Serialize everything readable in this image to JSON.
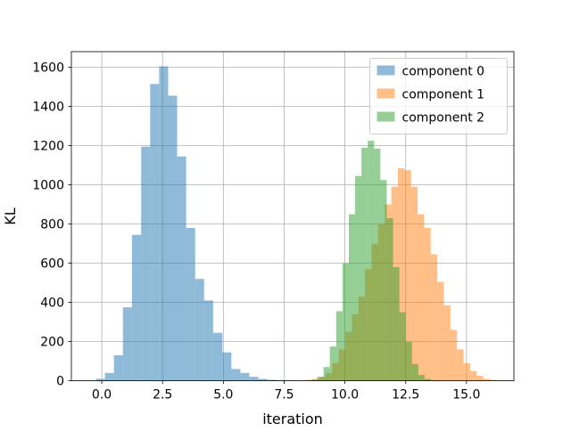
{
  "chart_data": {
    "type": "histogram",
    "title": "",
    "xlabel": "iteration",
    "ylabel": "KL",
    "xlim": [
      -1.25,
      16.95
    ],
    "ylim": [
      0,
      1680
    ],
    "xticks": [
      0.0,
      2.5,
      5.0,
      7.5,
      10.0,
      12.5,
      15.0
    ],
    "xtick_labels": [
      "0.0",
      "2.5",
      "5.0",
      "7.5",
      "10.0",
      "12.5",
      "15.0"
    ],
    "yticks": [
      0,
      200,
      400,
      600,
      800,
      1000,
      1200,
      1400,
      1600
    ],
    "ytick_labels": [
      "0",
      "200",
      "400",
      "600",
      "800",
      "1000",
      "1200",
      "1400",
      "1600"
    ],
    "grid": true,
    "legend_position": "top-right",
    "series": [
      {
        "name": "component 0",
        "color": "#1f77b4",
        "alpha": 0.5,
        "bin_edges": [
          -0.24,
          0.13,
          0.5,
          0.87,
          1.24,
          1.62,
          1.99,
          2.36,
          2.73,
          3.1,
          3.47,
          3.84,
          4.21,
          4.58,
          4.96,
          5.33,
          5.7,
          6.07,
          6.44,
          6.81,
          7.18,
          7.55,
          7.92,
          8.3,
          8.67
        ],
        "counts": [
          10,
          40,
          130,
          375,
          745,
          1195,
          1515,
          1605,
          1455,
          1145,
          780,
          520,
          410,
          245,
          145,
          60,
          40,
          20,
          10,
          5,
          3,
          2,
          1,
          1
        ]
      },
      {
        "name": "component 1",
        "color": "#ff7f0e",
        "alpha": 0.5,
        "bin_edges": [
          8.4,
          8.67,
          8.94,
          9.21,
          9.48,
          9.75,
          10.02,
          10.29,
          10.56,
          10.83,
          11.1,
          11.37,
          11.64,
          11.91,
          12.18,
          12.45,
          12.72,
          12.99,
          13.26,
          13.53,
          13.8,
          14.07,
          14.34,
          14.61,
          14.88,
          15.15,
          15.42,
          15.69,
          15.96,
          16.23
        ],
        "counts": [
          5,
          10,
          20,
          40,
          90,
          160,
          250,
          340,
          430,
          570,
          700,
          800,
          900,
          990,
          1085,
          1075,
          990,
          850,
          780,
          645,
          505,
          385,
          260,
          160,
          90,
          50,
          25,
          10,
          5
        ]
      },
      {
        "name": "component 2",
        "color": "#2ca02c",
        "alpha": 0.5,
        "bin_edges": [
          8.6,
          8.86,
          9.12,
          9.38,
          9.64,
          9.9,
          10.16,
          10.42,
          10.68,
          10.94,
          11.2,
          11.46,
          11.72,
          11.98,
          12.24,
          12.5,
          12.76,
          13.02,
          13.28,
          13.54,
          13.8
        ],
        "counts": [
          5,
          20,
          70,
          175,
          355,
          600,
          850,
          1045,
          1190,
          1225,
          1185,
          1025,
          830,
          580,
          350,
          200,
          85,
          30,
          10,
          3
        ]
      }
    ]
  }
}
